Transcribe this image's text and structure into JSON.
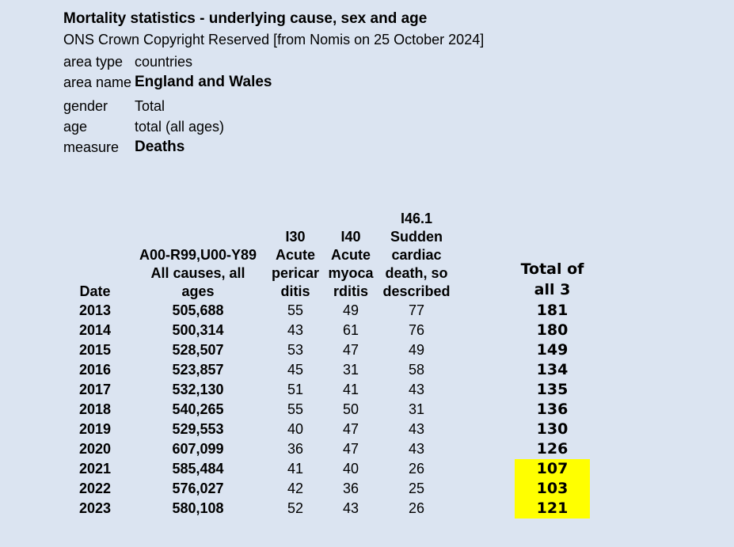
{
  "page": {
    "title": "Mortality statistics - underlying cause, sex and age",
    "subtitle": "ONS Crown Copyright Reserved [from Nomis on 25 October 2024]"
  },
  "meta": {
    "rows": [
      {
        "label": "area type",
        "value": "countries",
        "bold": false
      },
      {
        "label": "area name",
        "value": "England and Wales",
        "bold": true
      },
      {
        "label": "gender",
        "value": "Total",
        "bold": false
      },
      {
        "label": "age",
        "value": "total (all ages)",
        "bold": false
      },
      {
        "label": "measure",
        "value": "Deaths",
        "bold": true
      }
    ]
  },
  "table": {
    "columns": [
      "date",
      "all_causes",
      "i30",
      "i40",
      "i46_1",
      "spacer",
      "total"
    ],
    "headers": {
      "date": "Date",
      "all_causes": "A00-R99,U00-Y89\nAll causes, all\nages",
      "i30": "I30\nAcute\npericar\nditis",
      "i40": "I40\nAcute\nmyoca\nrditis",
      "i46_1": "I46.1\nSudden\ncardiac\ndeath, so\ndescribed",
      "spacer": "",
      "total": "Total of\nall 3"
    },
    "rows": [
      {
        "date": "2013",
        "all_causes": "505,688",
        "i30": "55",
        "i40": "49",
        "i46_1": "77",
        "total": "181",
        "highlight": false
      },
      {
        "date": "2014",
        "all_causes": "500,314",
        "i30": "43",
        "i40": "61",
        "i46_1": "76",
        "total": "180",
        "highlight": false
      },
      {
        "date": "2015",
        "all_causes": "528,507",
        "i30": "53",
        "i40": "47",
        "i46_1": "49",
        "total": "149",
        "highlight": false
      },
      {
        "date": "2016",
        "all_causes": "523,857",
        "i30": "45",
        "i40": "31",
        "i46_1": "58",
        "total": "134",
        "highlight": false
      },
      {
        "date": "2017",
        "all_causes": "532,130",
        "i30": "51",
        "i40": "41",
        "i46_1": "43",
        "total": "135",
        "highlight": false
      },
      {
        "date": "2018",
        "all_causes": "540,265",
        "i30": "55",
        "i40": "50",
        "i46_1": "31",
        "total": "136",
        "highlight": false
      },
      {
        "date": "2019",
        "all_causes": "529,553",
        "i30": "40",
        "i40": "47",
        "i46_1": "43",
        "total": "130",
        "highlight": false
      },
      {
        "date": "2020",
        "all_causes": "607,099",
        "i30": "36",
        "i40": "47",
        "i46_1": "43",
        "total": "126",
        "highlight": false
      },
      {
        "date": "2021",
        "all_causes": "585,484",
        "i30": "41",
        "i40": "40",
        "i46_1": "26",
        "total": "107",
        "highlight": true
      },
      {
        "date": "2022",
        "all_causes": "576,027",
        "i30": "42",
        "i40": "36",
        "i46_1": "25",
        "total": "103",
        "highlight": true
      },
      {
        "date": "2023",
        "all_causes": "580,108",
        "i30": "52",
        "i40": "43",
        "i46_1": "26",
        "total": "121",
        "highlight": true
      }
    ]
  },
  "colors": {
    "background": "#dbe4f1",
    "highlight": "#ffff00",
    "text": "#000000"
  }
}
